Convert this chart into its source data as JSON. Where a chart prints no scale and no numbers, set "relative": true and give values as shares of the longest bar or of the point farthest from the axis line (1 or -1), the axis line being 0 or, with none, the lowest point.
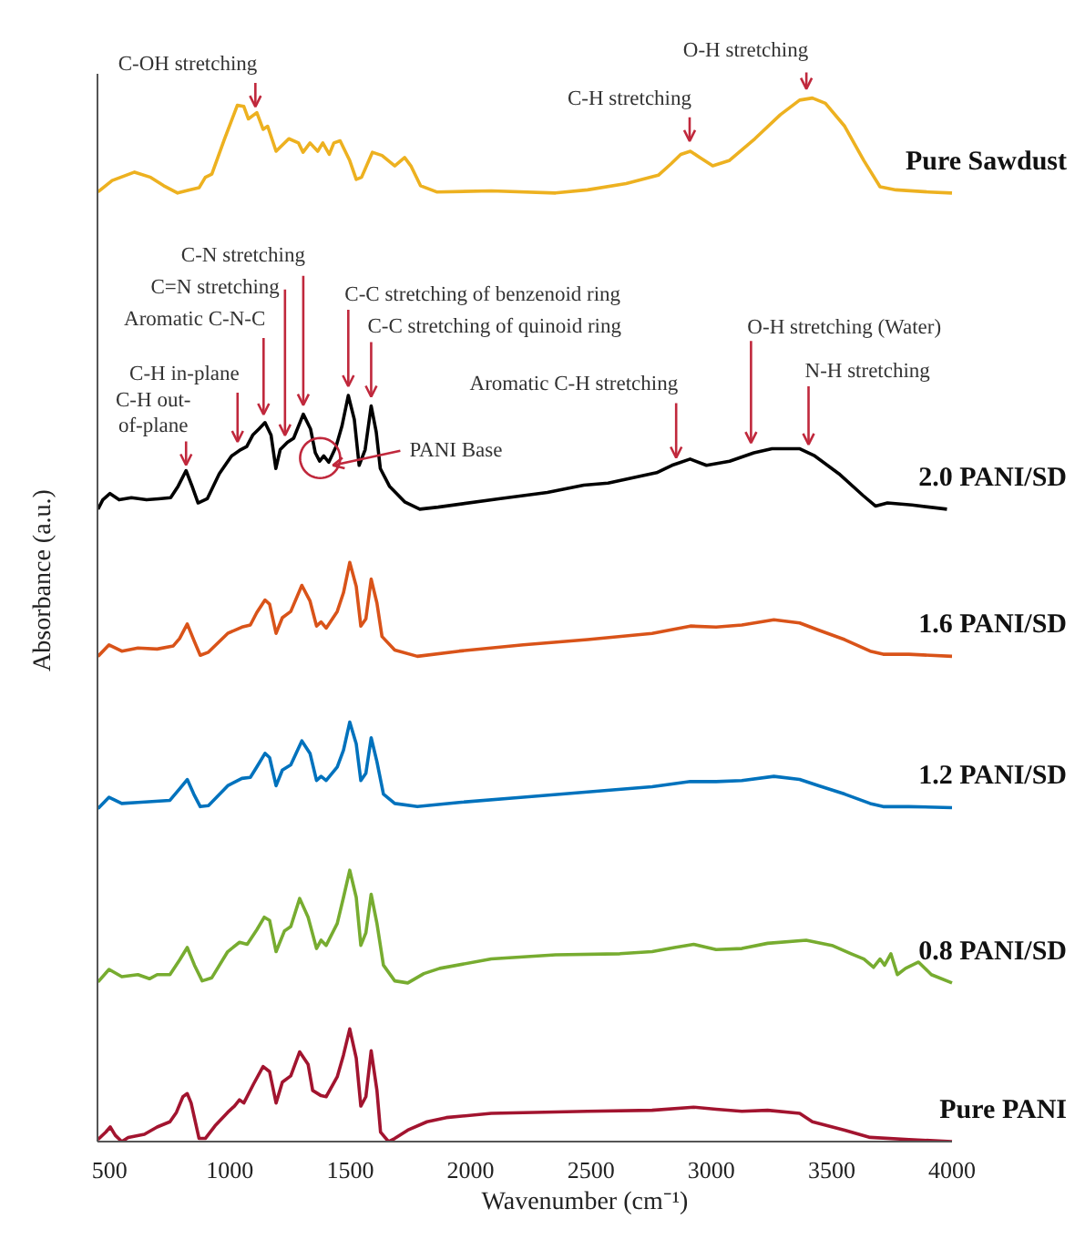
{
  "chart_data": {
    "type": "line",
    "relative": true,
    "xlabel": "Wavenumber (cm⁻¹)",
    "ylabel": "Absorbance (a.u.)",
    "xlim": [
      450,
      4000
    ],
    "xticks": [
      500,
      1000,
      1500,
      2000,
      2500,
      3000,
      3500,
      4000
    ],
    "tick_labels": "x",
    "line_style": "solid",
    "series": [
      {
        "name": "Pure Sawdust",
        "color": "#edb120",
        "x": [
          452,
          511,
          604,
          671,
          725,
          783,
          832,
          872,
          898,
          925,
          978,
          1031,
          1058,
          1077,
          1112,
          1138,
          1157,
          1192,
          1245,
          1285,
          1304,
          1333,
          1365,
          1386,
          1413,
          1432,
          1458,
          1498,
          1525,
          1547,
          1592,
          1632,
          1685,
          1726,
          1752,
          1792,
          1859,
          2086,
          2353,
          2486,
          2646,
          2780,
          2833,
          2873,
          2913,
          2953,
          3006,
          3074,
          3181,
          3287,
          3367,
          3420,
          3474,
          3554,
          3634,
          3701,
          3767,
          3901,
          4000
        ],
        "values": [
          0.91,
          0.921,
          0.929,
          0.924,
          0.916,
          0.909,
          0.912,
          0.914,
          0.924,
          0.927,
          0.961,
          0.993,
          0.992,
          0.98,
          0.986,
          0.97,
          0.973,
          0.949,
          0.961,
          0.957,
          0.948,
          0.957,
          0.949,
          0.957,
          0.946,
          0.957,
          0.959,
          0.94,
          0.922,
          0.924,
          0.948,
          0.945,
          0.935,
          0.943,
          0.935,
          0.916,
          0.91,
          0.911,
          0.909,
          0.912,
          0.918,
          0.926,
          0.937,
          0.946,
          0.949,
          0.943,
          0.935,
          0.94,
          0.961,
          0.984,
          0.998,
          1.0,
          0.995,
          0.973,
          0.94,
          0.915,
          0.912,
          0.91,
          0.909
        ]
      },
      {
        "name": "2.0 PANI/SD",
        "color": "#000000",
        "x": [
          452,
          472,
          502,
          540,
          591,
          654,
          704,
          754,
          785,
          818,
          843,
          868,
          906,
          956,
          1007,
          1045,
          1070,
          1095,
          1121,
          1146,
          1171,
          1191,
          1209,
          1239,
          1265,
          1305,
          1335,
          1355,
          1373,
          1390,
          1411,
          1441,
          1466,
          1492,
          1517,
          1537,
          1562,
          1587,
          1608,
          1625,
          1663,
          1726,
          1789,
          1865,
          2117,
          2319,
          2470,
          2571,
          2773,
          2836,
          2912,
          2980,
          3076,
          3177,
          3252,
          3366,
          3430,
          3530,
          3631,
          3682,
          3732,
          3833,
          3979
        ],
        "values": [
          0.606,
          0.615,
          0.621,
          0.615,
          0.617,
          0.615,
          0.616,
          0.617,
          0.628,
          0.643,
          0.628,
          0.612,
          0.616,
          0.64,
          0.657,
          0.663,
          0.666,
          0.677,
          0.683,
          0.689,
          0.677,
          0.645,
          0.663,
          0.67,
          0.674,
          0.697,
          0.683,
          0.66,
          0.652,
          0.657,
          0.651,
          0.666,
          0.686,
          0.715,
          0.692,
          0.648,
          0.663,
          0.705,
          0.68,
          0.645,
          0.628,
          0.613,
          0.606,
          0.608,
          0.616,
          0.622,
          0.629,
          0.631,
          0.641,
          0.648,
          0.654,
          0.648,
          0.652,
          0.66,
          0.664,
          0.664,
          0.657,
          0.64,
          0.619,
          0.609,
          0.612,
          0.61,
          0.606
        ]
      },
      {
        "name": "1.6 PANI/SD",
        "color": "#d95319",
        "x": [
          452,
          498,
          551,
          618,
          698,
          765,
          791,
          823,
          853,
          877,
          911,
          991,
          1050,
          1085,
          1112,
          1146,
          1165,
          1192,
          1218,
          1253,
          1299,
          1333,
          1360,
          1379,
          1400,
          1446,
          1472,
          1498,
          1525,
          1544,
          1565,
          1587,
          1611,
          1632,
          1685,
          1779,
          1953,
          2219,
          2486,
          2754,
          2913,
          3020,
          3127,
          3260,
          3367,
          3447,
          3554,
          3660,
          3714,
          3821,
          4000
        ],
        "values": [
          0.465,
          0.476,
          0.47,
          0.473,
          0.472,
          0.475,
          0.482,
          0.496,
          0.479,
          0.466,
          0.469,
          0.487,
          0.493,
          0.495,
          0.507,
          0.519,
          0.515,
          0.487,
          0.502,
          0.508,
          0.533,
          0.518,
          0.494,
          0.498,
          0.492,
          0.508,
          0.526,
          0.555,
          0.532,
          0.494,
          0.501,
          0.539,
          0.516,
          0.484,
          0.471,
          0.465,
          0.47,
          0.476,
          0.481,
          0.487,
          0.494,
          0.493,
          0.495,
          0.5,
          0.497,
          0.49,
          0.481,
          0.47,
          0.467,
          0.467,
          0.465
        ]
      },
      {
        "name": "1.2 PANI/SD",
        "color": "#0072bd",
        "x": [
          452,
          498,
          551,
          618,
          751,
          791,
          823,
          850,
          877,
          911,
          991,
          1050,
          1085,
          1112,
          1146,
          1165,
          1192,
          1218,
          1253,
          1299,
          1333,
          1360,
          1379,
          1400,
          1446,
          1472,
          1498,
          1525,
          1544,
          1565,
          1587,
          1611,
          1638,
          1685,
          1779,
          1953,
          2219,
          2486,
          2754,
          2913,
          3020,
          3127,
          3260,
          3367,
          3447,
          3554,
          3660,
          3714,
          3821,
          4000
        ],
        "values": [
          0.319,
          0.33,
          0.324,
          0.325,
          0.327,
          0.338,
          0.347,
          0.333,
          0.321,
          0.322,
          0.341,
          0.348,
          0.349,
          0.359,
          0.372,
          0.368,
          0.341,
          0.356,
          0.361,
          0.384,
          0.372,
          0.346,
          0.35,
          0.346,
          0.359,
          0.375,
          0.402,
          0.381,
          0.346,
          0.353,
          0.387,
          0.364,
          0.333,
          0.324,
          0.321,
          0.325,
          0.33,
          0.335,
          0.34,
          0.345,
          0.345,
          0.346,
          0.35,
          0.347,
          0.341,
          0.333,
          0.324,
          0.321,
          0.321,
          0.32
        ]
      },
      {
        "name": "0.8 PANI/SD",
        "color": "#77ac30",
        "x": [
          452,
          498,
          551,
          618,
          666,
          698,
          751,
          791,
          823,
          853,
          885,
          925,
          991,
          1040,
          1072,
          1112,
          1143,
          1165,
          1192,
          1227,
          1253,
          1290,
          1325,
          1360,
          1379,
          1400,
          1446,
          1472,
          1498,
          1525,
          1544,
          1565,
          1587,
          1611,
          1638,
          1685,
          1739,
          1806,
          1872,
          2086,
          2353,
          2620,
          2754,
          2847,
          2927,
          3020,
          3127,
          3234,
          3394,
          3501,
          3581,
          3634,
          3674,
          3701,
          3720,
          3746,
          3773,
          3807,
          3861,
          3914,
          4000
        ],
        "values": [
          0.153,
          0.165,
          0.158,
          0.16,
          0.156,
          0.16,
          0.16,
          0.174,
          0.186,
          0.169,
          0.154,
          0.157,
          0.182,
          0.191,
          0.189,
          0.203,
          0.215,
          0.212,
          0.182,
          0.202,
          0.206,
          0.233,
          0.215,
          0.185,
          0.193,
          0.188,
          0.209,
          0.234,
          0.26,
          0.234,
          0.188,
          0.2,
          0.237,
          0.209,
          0.169,
          0.154,
          0.152,
          0.161,
          0.166,
          0.175,
          0.179,
          0.18,
          0.182,
          0.186,
          0.189,
          0.184,
          0.185,
          0.19,
          0.193,
          0.188,
          0.18,
          0.175,
          0.167,
          0.175,
          0.169,
          0.18,
          0.16,
          0.166,
          0.172,
          0.16,
          0.152
        ]
      },
      {
        "name": "Pure PANI",
        "color": "#a2142f",
        "x": [
          452,
          484,
          503,
          524,
          551,
          578,
          645,
          698,
          751,
          778,
          805,
          823,
          839,
          872,
          898,
          938,
          991,
          1019,
          1040,
          1058,
          1098,
          1138,
          1165,
          1192,
          1218,
          1253,
          1290,
          1325,
          1344,
          1379,
          1400,
          1446,
          1472,
          1498,
          1525,
          1544,
          1565,
          1587,
          1611,
          1626,
          1659,
          1685,
          1739,
          1819,
          1899,
          2086,
          2486,
          2754,
          2927,
          3020,
          3127,
          3234,
          3367,
          3420,
          3554,
          3660,
          3821,
          4000
        ],
        "values": [
          0.002,
          0.009,
          0.014,
          0.006,
          0,
          0.004,
          0.007,
          0.014,
          0.019,
          0.028,
          0.043,
          0.046,
          0.037,
          0.003,
          0.003,
          0.015,
          0.028,
          0.034,
          0.04,
          0.037,
          0.055,
          0.072,
          0.067,
          0.037,
          0.057,
          0.063,
          0.086,
          0.074,
          0.049,
          0.044,
          0.043,
          0.062,
          0.083,
          0.108,
          0.08,
          0.034,
          0.043,
          0.087,
          0.049,
          0.009,
          0,
          0.003,
          0.011,
          0.019,
          0.023,
          0.027,
          0.029,
          0.03,
          0.033,
          0.031,
          0.029,
          0.03,
          0.027,
          0.019,
          0.011,
          0.004,
          0.002,
          0
        ]
      }
    ],
    "annotations": [
      {
        "text": "C-OH stretching",
        "x": 1106,
        "y": 0.99
      },
      {
        "text": "C-H stretching",
        "x": 2910,
        "y": 0.95
      },
      {
        "text": "O-H stretching",
        "x": 3395,
        "y": 1.0
      },
      {
        "text": "C-N stretching",
        "x": 1305,
        "y": 0.697
      },
      {
        "text": "C=N stretching",
        "x": 1229,
        "y": 0.668
      },
      {
        "text": "Aromatic C-N-C",
        "x": 1140,
        "y": 0.688
      },
      {
        "text": "C-H in-plane",
        "x": 1032,
        "y": 0.66
      },
      {
        "text": "C-H out-\nof-plane",
        "x": 818,
        "y": 0.643
      },
      {
        "text": "C-C stretching of benzenoid ring",
        "x": 1492,
        "y": 0.715
      },
      {
        "text": "C-C stretching of quinoid ring",
        "x": 1587,
        "y": 0.705
      },
      {
        "text": "Aromatic C-H stretching",
        "x": 2854,
        "y": 0.65
      },
      {
        "text": "O-H stretching (Water)",
        "x": 3165,
        "y": 0.659
      },
      {
        "text": "N-H stretching",
        "x": 3404,
        "y": 0.661
      },
      {
        "text": "PANI Base",
        "x": 1375,
        "y": 0.655
      }
    ]
  }
}
